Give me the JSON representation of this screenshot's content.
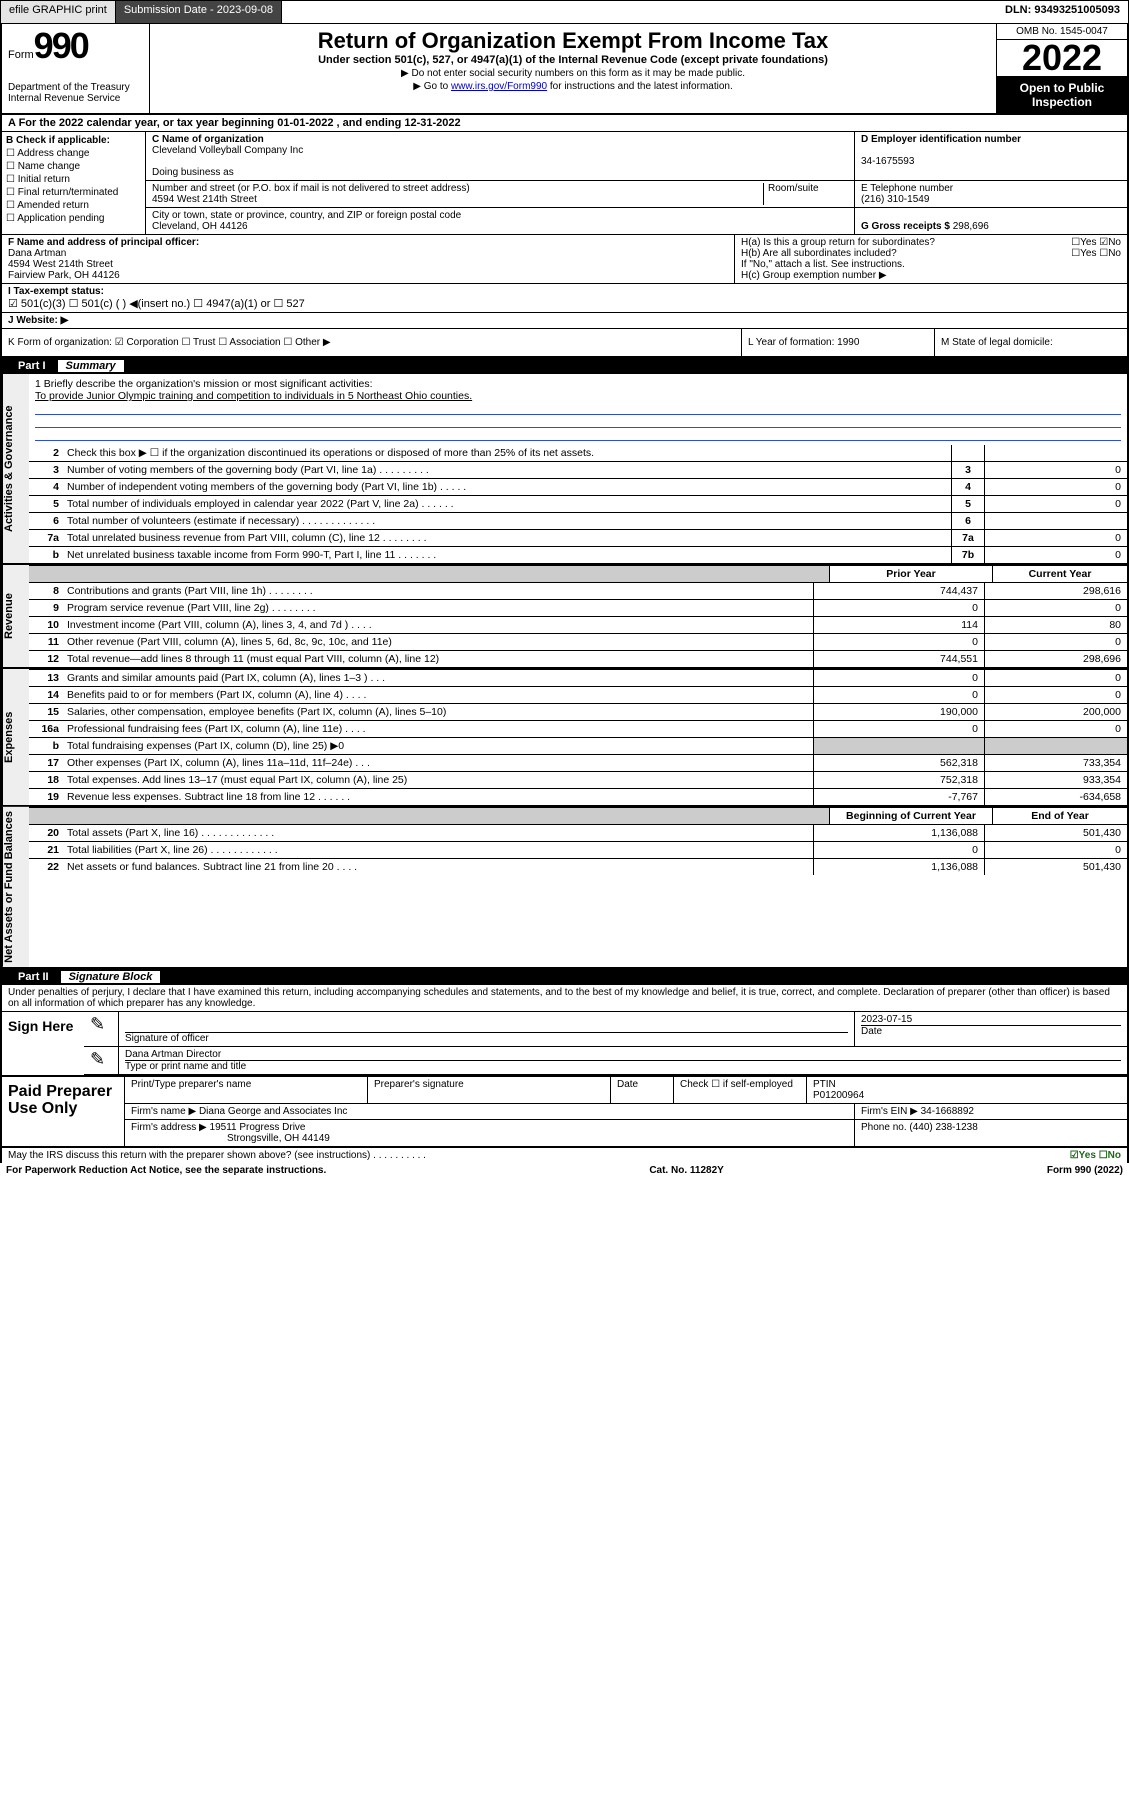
{
  "topbar": {
    "efile": "efile GRAPHIC print",
    "submission_label": "Submission Date - ",
    "submission_date": "2023-09-08",
    "dln_label": "DLN: ",
    "dln": "93493251005093"
  },
  "header": {
    "form_word": "Form",
    "form_num": "990",
    "dept": "Department of the Treasury\nInternal Revenue Service",
    "title": "Return of Organization Exempt From Income Tax",
    "sub": "Under section 501(c), 527, or 4947(a)(1) of the Internal Revenue Code (except private foundations)",
    "note1": "▶ Do not enter social security numbers on this form as it may be made public.",
    "note2_pre": "▶ Go to ",
    "note2_link": "www.irs.gov/Form990",
    "note2_post": " for instructions and the latest information.",
    "omb": "OMB No. 1545-0047",
    "year": "2022",
    "open": "Open to Public Inspection"
  },
  "ty": {
    "text_pre": "A For the 2022 calendar year, or tax year beginning ",
    "beg": "01-01-2022",
    "mid": " , and ending ",
    "end": "12-31-2022"
  },
  "B": {
    "label": "B Check if applicable:",
    "opts": [
      "Address change",
      "Name change",
      "Initial return",
      "Final return/terminated",
      "Amended return",
      "Application pending"
    ]
  },
  "C": {
    "name_label": "C Name of organization",
    "name": "Cleveland Volleyball Company Inc",
    "dba_label": "Doing business as",
    "dba": "",
    "street_label": "Number and street (or P.O. box if mail is not delivered to street address)",
    "room_label": "Room/suite",
    "street": "4594 West 214th Street",
    "city_label": "City or town, state or province, country, and ZIP or foreign postal code",
    "city": "Cleveland, OH  44126"
  },
  "D": {
    "label": "D Employer identification number",
    "val": "34-1675593"
  },
  "E": {
    "label": "E Telephone number",
    "val": "(216) 310-1549"
  },
  "G": {
    "label": "G Gross receipts $ ",
    "val": "298,696"
  },
  "F": {
    "label": "F Name and address of principal officer:",
    "line1": "Dana Artman",
    "line2": "4594 West 214th Street",
    "line3": "Fairview Park, OH  44126"
  },
  "H": {
    "a": "H(a)  Is this a group return for subordinates?",
    "a_yn": "☐Yes ☑No",
    "b": "H(b)  Are all subordinates included?",
    "b_yn": "☐Yes ☐No",
    "note": "If \"No,\" attach a list. See instructions.",
    "c": "H(c)  Group exemption number ▶"
  },
  "I": {
    "label": "I   Tax-exempt status:",
    "opts": "☑ 501(c)(3)   ☐ 501(c) (   ) ◀(insert no.)   ☐ 4947(a)(1) or  ☐ 527"
  },
  "J": {
    "label": "J   Website: ▶"
  },
  "K": {
    "label": "K Form of organization:  ☑ Corporation  ☐ Trust  ☐ Association  ☐ Other ▶"
  },
  "L": {
    "label": "L Year of formation: ",
    "val": "1990"
  },
  "M": {
    "label": "M State of legal domicile:",
    "val": ""
  },
  "part1": {
    "num": "Part I",
    "title": "Summary"
  },
  "mission": {
    "q": "1  Briefly describe the organization's mission or most significant activities:",
    "a": "To provide Junior Olympic training and competition to individuals in 5 Northeast Ohio counties."
  },
  "gov_lines": [
    {
      "n": "2",
      "t": "Check this box ▶ ☐  if the organization discontinued its operations or disposed of more than 25% of its net assets.",
      "box": "",
      "v": ""
    },
    {
      "n": "3",
      "t": "Number of voting members of the governing body (Part VI, line 1a)  .  .  .  .  .  .  .  .  .",
      "box": "3",
      "v": "0"
    },
    {
      "n": "4",
      "t": "Number of independent voting members of the governing body (Part VI, line 1b)  .  .  .  .  .",
      "box": "4",
      "v": "0"
    },
    {
      "n": "5",
      "t": "Total number of individuals employed in calendar year 2022 (Part V, line 2a)  .  .  .  .  .  .",
      "box": "5",
      "v": "0"
    },
    {
      "n": "6",
      "t": "Total number of volunteers (estimate if necessary)  .  .  .  .  .  .  .  .  .  .  .  .  .",
      "box": "6",
      "v": ""
    },
    {
      "n": "7a",
      "t": "Total unrelated business revenue from Part VIII, column (C), line 12  .  .  .  .  .  .  .  .",
      "box": "7a",
      "v": "0"
    },
    {
      "n": "b",
      "t": "Net unrelated business taxable income from Form 990-T, Part I, line 11  .  .  .  .  .  .  .",
      "box": "7b",
      "v": "0"
    }
  ],
  "rev_head": {
    "h1": "Prior Year",
    "h2": "Current Year"
  },
  "rev_lines": [
    {
      "n": "8",
      "t": "Contributions and grants (Part VIII, line 1h)  .  .  .  .  .  .  .  .",
      "v1": "744,437",
      "v2": "298,616"
    },
    {
      "n": "9",
      "t": "Program service revenue (Part VIII, line 2g)  .  .  .  .  .  .  .  .",
      "v1": "0",
      "v2": "0"
    },
    {
      "n": "10",
      "t": "Investment income (Part VIII, column (A), lines 3, 4, and 7d )  .  .  .  .",
      "v1": "114",
      "v2": "80"
    },
    {
      "n": "11",
      "t": "Other revenue (Part VIII, column (A), lines 5, 6d, 8c, 9c, 10c, and 11e)",
      "v1": "0",
      "v2": "0"
    },
    {
      "n": "12",
      "t": "Total revenue—add lines 8 through 11 (must equal Part VIII, column (A), line 12)",
      "v1": "744,551",
      "v2": "298,696"
    }
  ],
  "exp_lines": [
    {
      "n": "13",
      "t": "Grants and similar amounts paid (Part IX, column (A), lines 1–3 )  .  .  .",
      "v1": "0",
      "v2": "0"
    },
    {
      "n": "14",
      "t": "Benefits paid to or for members (Part IX, column (A), line 4)  .  .  .  .",
      "v1": "0",
      "v2": "0"
    },
    {
      "n": "15",
      "t": "Salaries, other compensation, employee benefits (Part IX, column (A), lines 5–10)",
      "v1": "190,000",
      "v2": "200,000"
    },
    {
      "n": "16a",
      "t": "Professional fundraising fees (Part IX, column (A), line 11e)  .  .  .  .",
      "v1": "0",
      "v2": "0"
    },
    {
      "n": "b",
      "t": "Total fundraising expenses (Part IX, column (D), line 25) ▶0",
      "v1": "",
      "v2": "",
      "grey": true
    },
    {
      "n": "17",
      "t": "Other expenses (Part IX, column (A), lines 11a–11d, 11f–24e)  .  .  .",
      "v1": "562,318",
      "v2": "733,354"
    },
    {
      "n": "18",
      "t": "Total expenses. Add lines 13–17 (must equal Part IX, column (A), line 25)",
      "v1": "752,318",
      "v2": "933,354"
    },
    {
      "n": "19",
      "t": "Revenue less expenses. Subtract line 18 from line 12  .  .  .  .  .  .",
      "v1": "-7,767",
      "v2": "-634,658"
    }
  ],
  "na_head": {
    "h1": "Beginning of Current Year",
    "h2": "End of Year"
  },
  "na_lines": [
    {
      "n": "20",
      "t": "Total assets (Part X, line 16)  .  .  .  .  .  .  .  .  .  .  .  .  .",
      "v1": "1,136,088",
      "v2": "501,430"
    },
    {
      "n": "21",
      "t": "Total liabilities (Part X, line 26)  .  .  .  .  .  .  .  .  .  .  .  .",
      "v1": "0",
      "v2": "0"
    },
    {
      "n": "22",
      "t": "Net assets or fund balances. Subtract line 21 from line 20  .  .  .  .",
      "v1": "1,136,088",
      "v2": "501,430"
    }
  ],
  "part2": {
    "num": "Part II",
    "title": "Signature Block"
  },
  "sign": {
    "disc": "Under penalties of perjury, I declare that I have examined this return, including accompanying schedules and statements, and to the best of my knowledge and belief, it is true, correct, and complete. Declaration of preparer (other than officer) is based on all information of which preparer has any knowledge.",
    "label": "Sign Here",
    "date": "2023-07-15",
    "sig_caption": "Signature of officer",
    "date_caption": "Date",
    "name": "Dana Artman  Director",
    "name_caption": "Type or print name and title"
  },
  "paid": {
    "label": "Paid Preparer Use Only",
    "h1": "Print/Type preparer's name",
    "h2": "Preparer's signature",
    "h3": "Date",
    "check_label": "Check ☐ if self-employed",
    "ptin_label": "PTIN",
    "ptin": "P01200964",
    "firm_name_label": "Firm's name   ▶ ",
    "firm_name": "Diana George and Associates Inc",
    "firm_ein_label": "Firm's EIN ▶ ",
    "firm_ein": "34-1668892",
    "firm_addr_label": "Firm's address ▶ ",
    "firm_addr1": "19511 Progress Drive",
    "firm_addr2": "Strongsville, OH  44149",
    "phone_label": "Phone no. ",
    "phone": "(440) 238-1238"
  },
  "discuss": {
    "q": "May the IRS discuss this return with the preparer shown above? (see instructions)   .  .  .  .  .  .  .  .  .  .",
    "yn": "☑Yes  ☐No"
  },
  "footer": {
    "left": "For Paperwork Reduction Act Notice, see the separate instructions.",
    "mid": "Cat. No. 11282Y",
    "right": "Form 990 (2022)"
  },
  "vtabs": {
    "gov": "Activities & Governance",
    "rev": "Revenue",
    "exp": "Expenses",
    "na": "Net Assets or Fund Balances"
  }
}
